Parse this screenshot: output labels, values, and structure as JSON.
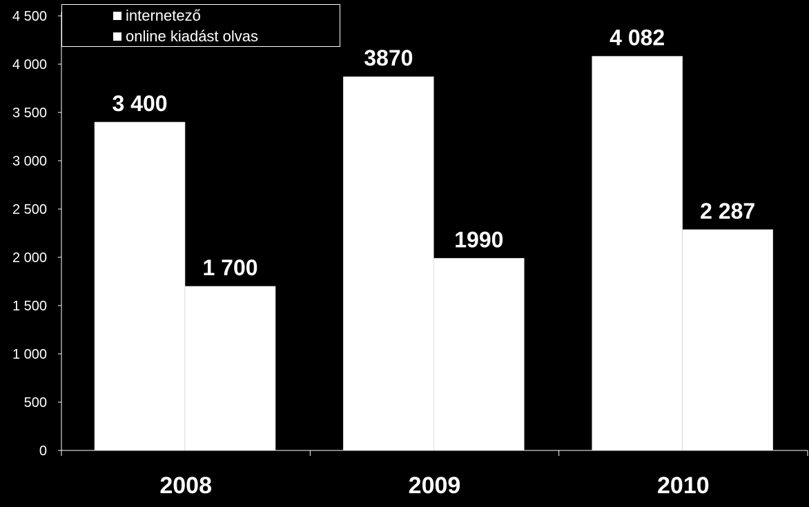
{
  "chart_data": {
    "type": "bar",
    "categories": [
      "2008",
      "2009",
      "2010"
    ],
    "series": [
      {
        "name": "internetező",
        "values": [
          3400,
          3870,
          4082
        ],
        "labels": [
          "3 400",
          "3870",
          "4 082"
        ],
        "color": "#ffffff"
      },
      {
        "name": "online kiadást olvas",
        "values": [
          1700,
          1990,
          2287
        ],
        "labels": [
          "1 700",
          "1990",
          "2 287"
        ],
        "color": "#ffffff"
      }
    ],
    "yticks": [
      {
        "value": 0,
        "label": "0"
      },
      {
        "value": 500,
        "label": "500"
      },
      {
        "value": 1000,
        "label": "1 000"
      },
      {
        "value": 1500,
        "label": "1 500"
      },
      {
        "value": 2000,
        "label": "2 000"
      },
      {
        "value": 2500,
        "label": "2 500"
      },
      {
        "value": 3000,
        "label": "3 000"
      },
      {
        "value": 3500,
        "label": "3 500"
      },
      {
        "value": 4000,
        "label": "4 000"
      },
      {
        "value": 4500,
        "label": "4 500"
      }
    ],
    "ylim": [
      0,
      4500
    ],
    "title": "",
    "xlabel": "",
    "ylabel": "",
    "grid": false,
    "legend_position": "top-left",
    "background": "#000000",
    "bar_color": "#ffffff"
  }
}
